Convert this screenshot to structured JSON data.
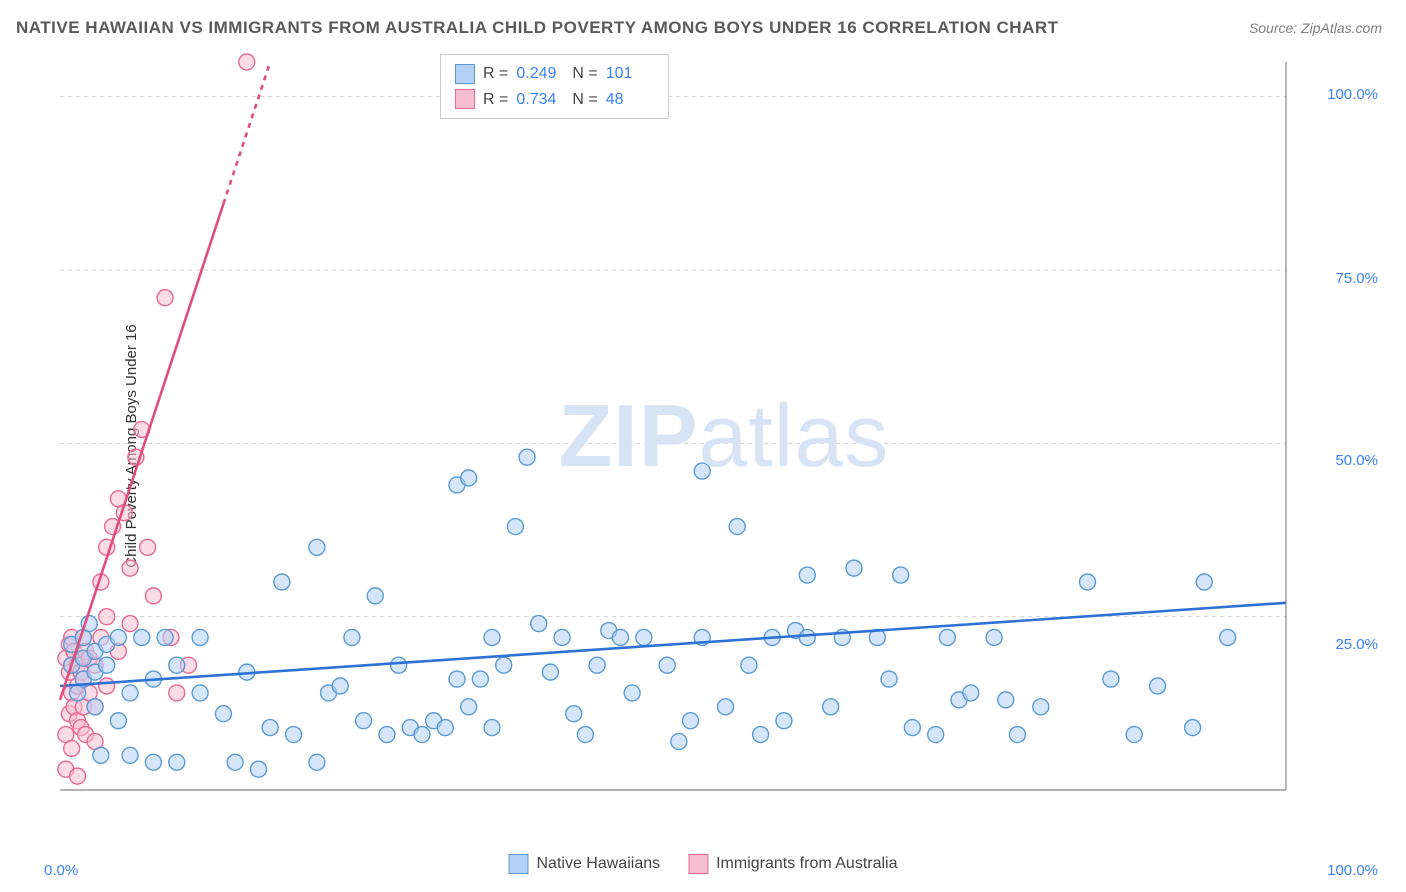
{
  "title": "NATIVE HAWAIIAN VS IMMIGRANTS FROM AUSTRALIA CHILD POVERTY AMONG BOYS UNDER 16 CORRELATION CHART",
  "source": "Source: ZipAtlas.com",
  "y_axis_label": "Child Poverty Among Boys Under 16",
  "watermark_a": "ZIP",
  "watermark_b": "atlas",
  "chart": {
    "type": "scatter",
    "xlim": [
      0,
      105
    ],
    "ylim": [
      0,
      105
    ],
    "x_ticks": [
      {
        "v": 0,
        "label": "0.0%"
      },
      {
        "v": 100,
        "label": "100.0%"
      }
    ],
    "y_ticks": [
      {
        "v": 25,
        "label": "25.0%"
      },
      {
        "v": 50,
        "label": "50.0%"
      },
      {
        "v": 75,
        "label": "75.0%"
      },
      {
        "v": 100,
        "label": "100.0%"
      }
    ],
    "grid_color": "#d0d0d0",
    "grid_dash": "4,4",
    "axis_color": "#888888",
    "background_color": "#ffffff",
    "marker_radius": 8,
    "marker_stroke_width": 1.4,
    "series": [
      {
        "name": "Native Hawaiians",
        "fill": "#b3d1f5",
        "stroke": "#5b9bd5",
        "fill_opacity": 0.55,
        "R": "0.249",
        "N": "101",
        "trend": {
          "x1": 0,
          "y1": 15,
          "x2": 105,
          "y2": 27,
          "color": "#2f72d6",
          "width": 2.6
        },
        "points": [
          [
            1,
            18
          ],
          [
            1,
            21
          ],
          [
            1.5,
            14
          ],
          [
            2,
            19
          ],
          [
            2,
            22
          ],
          [
            2,
            16
          ],
          [
            2.5,
            24
          ],
          [
            3,
            17
          ],
          [
            3,
            12
          ],
          [
            3,
            20
          ],
          [
            3.5,
            5
          ],
          [
            4,
            21
          ],
          [
            4,
            18
          ],
          [
            5,
            22
          ],
          [
            5,
            10
          ],
          [
            6,
            5
          ],
          [
            6,
            14
          ],
          [
            7,
            22
          ],
          [
            8,
            4
          ],
          [
            8,
            16
          ],
          [
            9,
            22
          ],
          [
            10,
            18
          ],
          [
            10,
            4
          ],
          [
            12,
            22
          ],
          [
            12,
            14
          ],
          [
            14,
            11
          ],
          [
            15,
            4
          ],
          [
            16,
            17
          ],
          [
            17,
            3
          ],
          [
            18,
            9
          ],
          [
            19,
            30
          ],
          [
            20,
            8
          ],
          [
            22,
            35
          ],
          [
            22,
            4
          ],
          [
            23,
            14
          ],
          [
            24,
            15
          ],
          [
            25,
            22
          ],
          [
            26,
            10
          ],
          [
            27,
            28
          ],
          [
            28,
            8
          ],
          [
            29,
            18
          ],
          [
            30,
            9
          ],
          [
            31,
            8
          ],
          [
            32,
            10
          ],
          [
            33,
            9
          ],
          [
            34,
            16
          ],
          [
            34,
            44
          ],
          [
            35,
            12
          ],
          [
            35,
            45
          ],
          [
            36,
            16
          ],
          [
            37,
            9
          ],
          [
            37,
            22
          ],
          [
            38,
            18
          ],
          [
            39,
            38
          ],
          [
            40,
            48
          ],
          [
            41,
            24
          ],
          [
            42,
            17
          ],
          [
            43,
            22
          ],
          [
            44,
            11
          ],
          [
            45,
            8
          ],
          [
            46,
            18
          ],
          [
            47,
            23
          ],
          [
            48,
            22
          ],
          [
            49,
            14
          ],
          [
            50,
            22
          ],
          [
            52,
            18
          ],
          [
            53,
            7
          ],
          [
            54,
            10
          ],
          [
            55,
            22
          ],
          [
            55,
            46
          ],
          [
            57,
            12
          ],
          [
            58,
            38
          ],
          [
            59,
            18
          ],
          [
            60,
            8
          ],
          [
            61,
            22
          ],
          [
            62,
            10
          ],
          [
            63,
            23
          ],
          [
            64,
            22
          ],
          [
            64,
            31
          ],
          [
            66,
            12
          ],
          [
            67,
            22
          ],
          [
            68,
            32
          ],
          [
            70,
            22
          ],
          [
            71,
            16
          ],
          [
            72,
            31
          ],
          [
            73,
            9
          ],
          [
            75,
            8
          ],
          [
            76,
            22
          ],
          [
            77,
            13
          ],
          [
            78,
            14
          ],
          [
            80,
            22
          ],
          [
            81,
            13
          ],
          [
            82,
            8
          ],
          [
            84,
            12
          ],
          [
            88,
            30
          ],
          [
            90,
            16
          ],
          [
            92,
            8
          ],
          [
            94,
            15
          ],
          [
            97,
            9
          ],
          [
            98,
            30
          ],
          [
            100,
            22
          ]
        ]
      },
      {
        "name": "Immigrants from Australia",
        "fill": "#f7bdd0",
        "stroke": "#e86a91",
        "fill_opacity": 0.55,
        "R": "0.734",
        "N": "48",
        "trend": {
          "x1": 0,
          "y1": 13,
          "x2": 18,
          "y2": 105,
          "color": "#e04d7c",
          "width": 2.6,
          "dash_from_x": 14
        },
        "points": [
          [
            0.5,
            3
          ],
          [
            0.5,
            8
          ],
          [
            0.5,
            19
          ],
          [
            0.8,
            11
          ],
          [
            0.8,
            17
          ],
          [
            0.8,
            21
          ],
          [
            1,
            6
          ],
          [
            1,
            14
          ],
          [
            1,
            18
          ],
          [
            1,
            22
          ],
          [
            1.2,
            12
          ],
          [
            1.2,
            20
          ],
          [
            1.5,
            2
          ],
          [
            1.5,
            10
          ],
          [
            1.5,
            15
          ],
          [
            1.5,
            18
          ],
          [
            1.8,
            9
          ],
          [
            1.8,
            17
          ],
          [
            2,
            12
          ],
          [
            2,
            16
          ],
          [
            2,
            22
          ],
          [
            2.2,
            8
          ],
          [
            2.2,
            20
          ],
          [
            2.5,
            14
          ],
          [
            2.5,
            19
          ],
          [
            3,
            7
          ],
          [
            3,
            12
          ],
          [
            3,
            18
          ],
          [
            3.5,
            22
          ],
          [
            3.5,
            30
          ],
          [
            4,
            15
          ],
          [
            4,
            25
          ],
          [
            4,
            35
          ],
          [
            4.5,
            38
          ],
          [
            5,
            20
          ],
          [
            5,
            42
          ],
          [
            5.5,
            40
          ],
          [
            6,
            32
          ],
          [
            6,
            24
          ],
          [
            6.5,
            48
          ],
          [
            7,
            52
          ],
          [
            7.5,
            35
          ],
          [
            8,
            28
          ],
          [
            9,
            71
          ],
          [
            9.5,
            22
          ],
          [
            10,
            14
          ],
          [
            11,
            18
          ],
          [
            16,
            105
          ]
        ]
      }
    ]
  },
  "legend_top": {
    "r_label": "R =",
    "n_label": "N ="
  },
  "legend_bottom_labels": {
    "series1": "Native Hawaiians",
    "series2": "Immigrants from Australia"
  }
}
